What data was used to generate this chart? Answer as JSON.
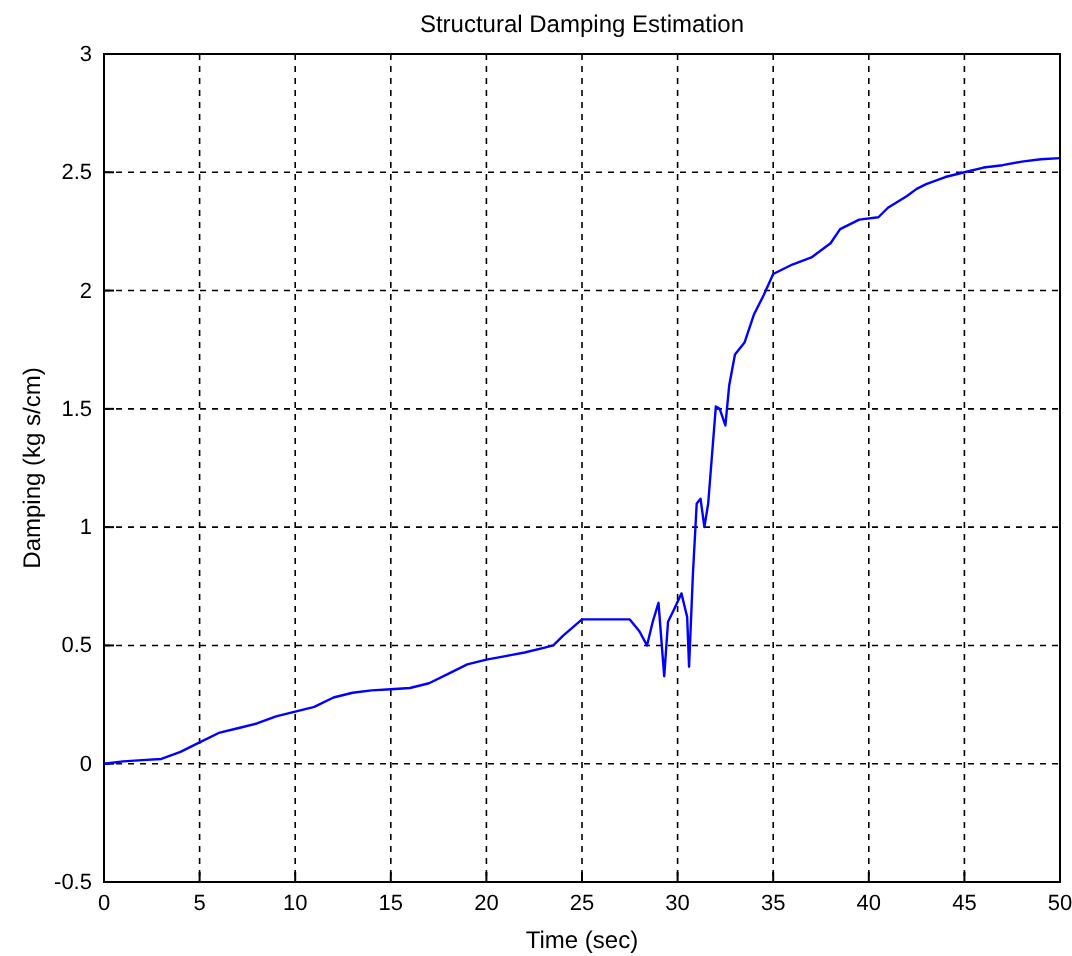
{
  "chart_data": {
    "type": "line",
    "title": "Structural Damping Estimation",
    "xlabel": "Time (sec)",
    "ylabel": "Damping (kg s/cm)",
    "x": [
      0,
      1,
      2,
      3,
      4,
      5,
      6,
      7,
      8,
      9,
      10,
      11,
      12,
      13,
      14,
      15,
      16,
      17,
      18,
      19,
      20,
      21,
      22,
      23,
      23.5,
      24,
      25,
      26,
      27,
      27.5,
      28,
      28.4,
      28.7,
      29,
      29.3,
      29.5,
      29.8,
      30.2,
      30.5,
      30.6,
      30.8,
      31,
      31.2,
      31.4,
      31.6,
      32,
      32.2,
      32.5,
      32.7,
      33,
      33.5,
      34,
      34.5,
      35,
      36,
      37,
      38,
      38.5,
      39.5,
      40.5,
      41,
      42,
      42.5,
      43,
      44,
      45,
      46,
      47,
      48,
      49,
      50
    ],
    "series": [
      {
        "color": "#0000ff",
        "values": [
          0,
          0.01,
          0.015,
          0.02,
          0.05,
          0.09,
          0.13,
          0.15,
          0.17,
          0.2,
          0.22,
          0.24,
          0.28,
          0.3,
          0.31,
          0.315,
          0.32,
          0.34,
          0.38,
          0.42,
          0.44,
          0.455,
          0.47,
          0.49,
          0.5,
          0.54,
          0.61,
          0.61,
          0.61,
          0.61,
          0.56,
          0.5,
          0.6,
          0.68,
          0.37,
          0.6,
          0.65,
          0.72,
          0.62,
          0.41,
          0.8,
          1.1,
          1.12,
          1.0,
          1.1,
          1.51,
          1.5,
          1.43,
          1.6,
          1.73,
          1.78,
          1.9,
          1.98,
          2.07,
          2.11,
          2.14,
          2.2,
          2.26,
          2.3,
          2.31,
          2.35,
          2.4,
          2.43,
          2.45,
          2.48,
          2.5,
          2.52,
          2.53,
          2.545,
          2.555,
          2.56
        ]
      }
    ],
    "xlim": [
      0,
      50
    ],
    "xticks": [
      0,
      5,
      10,
      15,
      20,
      25,
      30,
      35,
      40,
      45,
      50
    ],
    "ylim": [
      -0.5,
      3
    ],
    "yticks": [
      -0.5,
      0,
      0.5,
      1,
      1.5,
      2,
      2.5,
      3
    ],
    "grid": true
  }
}
